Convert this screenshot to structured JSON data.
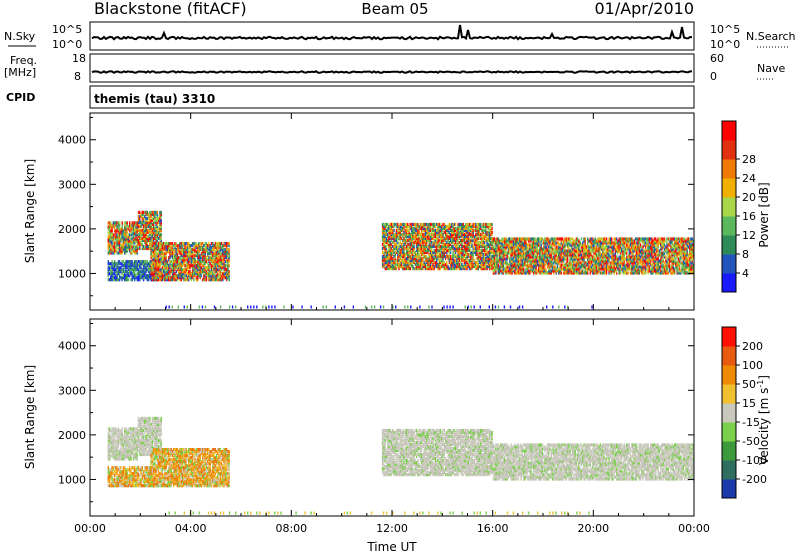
{
  "header": {
    "title": "Blackstone (fitACF)",
    "beam": "Beam 05",
    "date": "01/Apr/2010"
  },
  "top_panels": {
    "nsky_label": "N.Sky",
    "nsky_ticks": [
      "10^5",
      "10^0"
    ],
    "nsearch_label": "N.Search",
    "nsearch_ticks": [
      "10^5",
      "10^0"
    ],
    "freq_label": "Freq.",
    "freq_unit": "[MHz]",
    "freq_ticks": [
      "18",
      "8"
    ],
    "nave_label": "Nave",
    "nave_ticks": [
      "60",
      "0"
    ],
    "cpid_label": "CPID",
    "cpid_value": "themis (tau) 3310"
  },
  "chart_data": [
    {
      "type": "heatmap",
      "name": "power",
      "ylabel": "Slant Range [km]",
      "y_ticks": [
        1000,
        2000,
        3000,
        4000
      ],
      "ylim": [
        180,
        4600
      ],
      "x_ticks": [
        "00:00",
        "04:00",
        "08:00",
        "12:00",
        "16:00",
        "20:00",
        "00:00"
      ],
      "xlim_hours": [
        0,
        24
      ],
      "colorbar": {
        "label": "Power [dB]",
        "ticks": [
          "4",
          "8",
          "12",
          "16",
          "20",
          "24",
          "28"
        ],
        "colors": [
          "#1a1aff",
          "#2255bb",
          "#2e8b57",
          "#5cb85c",
          "#a8d84a",
          "#f0b000",
          "#f07a00",
          "#e03010",
          "#ff0000"
        ]
      }
    },
    {
      "type": "heatmap",
      "name": "velocity",
      "ylabel": "Slant Range [km]",
      "y_ticks": [
        1000,
        2000,
        3000,
        4000
      ],
      "ylim": [
        180,
        4600
      ],
      "x_ticks": [
        "00:00",
        "04:00",
        "08:00",
        "12:00",
        "16:00",
        "20:00",
        "00:00"
      ],
      "xlim_hours": [
        0,
        24
      ],
      "xlabel": "Time UT",
      "colorbar": {
        "label": "Velocity [m s",
        "label_exp": "-1",
        "label_end": "]",
        "ticks": [
          "200",
          "100",
          "50",
          "15",
          "-15",
          "-50",
          "-100",
          "-200"
        ],
        "colors": [
          "#1a3aaa",
          "#2e6e5e",
          "#3c9a3c",
          "#7ad04a",
          "#c8c8bc",
          "#f0c030",
          "#f08a00",
          "#e85a10",
          "#ff1000"
        ]
      }
    }
  ],
  "echo_regions": [
    {
      "t0": 0.7,
      "t1": 1.9,
      "r0": 1450,
      "r1": 2150,
      "pwr": "mid",
      "vel": "grey"
    },
    {
      "t0": 1.9,
      "t1": 2.8,
      "r0": 1550,
      "r1": 2400,
      "pwr": "mid",
      "vel": "grey"
    },
    {
      "t0": 0.7,
      "t1": 2.6,
      "r0": 850,
      "r1": 1300,
      "pwr": "low",
      "vel": "orange"
    },
    {
      "t0": 2.4,
      "t1": 5.5,
      "r0": 850,
      "r1": 1700,
      "pwr": "mid",
      "vel": "orange"
    },
    {
      "t0": 11.6,
      "t1": 16.0,
      "r0": 1100,
      "r1": 2100,
      "pwr": "mid",
      "vel": "grey"
    },
    {
      "t0": 16.0,
      "t1": 24.0,
      "r0": 1000,
      "r1": 1800,
      "pwr": "mid",
      "vel": "grey"
    }
  ]
}
